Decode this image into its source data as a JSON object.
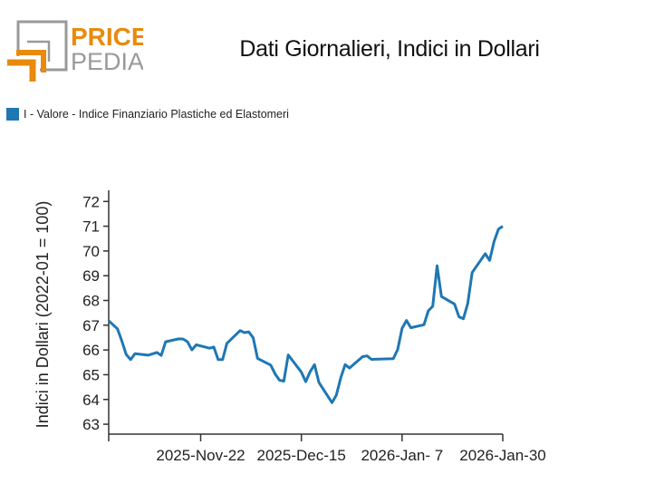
{
  "logo": {
    "text_top": "PRICE",
    "text_bottom": "PEDIA",
    "colors": {
      "orange": "#e98a0c",
      "gray": "#9a9a9a"
    }
  },
  "title": "Dati Giornalieri, Indici in Dollari",
  "legend": [
    {
      "label": "I - Valore - Indice Finanziario Plastiche ed Elastomeri",
      "color": "#1f77b4"
    }
  ],
  "chart_data": {
    "type": "line",
    "title": "Dati Giornalieri, Indici in Dollari",
    "xlabel": "",
    "ylabel": "Indici in Dollari (2022-01 = 100)",
    "xlim": [
      "2025-11-01",
      "2026-01-30"
    ],
    "ylim": [
      62.6,
      72.45
    ],
    "yticks": [
      63,
      64,
      65,
      66,
      67,
      68,
      69,
      70,
      71,
      72
    ],
    "xticks": [
      {
        "date": "2025-11-22",
        "label": "2025-Nov-22"
      },
      {
        "date": "2025-12-15",
        "label": "2025-Dec-15"
      },
      {
        "date": "2026-01-07",
        "label": "2026-Jan- 7"
      },
      {
        "date": "2026-01-30",
        "label": "2026-Jan-30"
      }
    ],
    "grid": false,
    "legend_position": "top-left",
    "series": [
      {
        "name": "I - Valore - Indice Finanziario Plastiche ed Elastomeri",
        "color": "#1f77b4",
        "x": [
          "2025-11-03",
          "2025-11-04",
          "2025-11-05",
          "2025-11-06",
          "2025-11-07",
          "2025-11-10",
          "2025-11-12",
          "2025-11-13",
          "2025-11-14",
          "2025-11-17",
          "2025-11-18",
          "2025-11-19",
          "2025-11-20",
          "2025-11-21",
          "2025-11-24",
          "2025-11-25",
          "2025-11-26",
          "2025-11-27",
          "2025-11-28",
          "2025-12-01",
          "2025-12-02",
          "2025-12-03",
          "2025-12-04",
          "2025-12-05",
          "2025-12-08",
          "2025-12-09",
          "2025-12-10",
          "2025-12-11",
          "2025-12-12",
          "2025-12-15",
          "2025-12-16",
          "2025-12-17",
          "2025-12-18",
          "2025-12-19",
          "2025-12-22",
          "2025-12-23",
          "2025-12-24",
          "2025-12-25",
          "2025-12-26",
          "2025-12-29",
          "2025-12-30",
          "2025-12-31",
          "2026-01-05",
          "2026-01-06",
          "2026-01-07",
          "2026-01-08",
          "2026-01-09",
          "2026-01-12",
          "2026-01-13",
          "2026-01-14",
          "2026-01-15",
          "2026-01-16",
          "2026-01-19",
          "2026-01-20",
          "2026-01-21",
          "2026-01-22",
          "2026-01-23",
          "2026-01-26",
          "2026-01-27",
          "2026-01-28",
          "2026-01-29",
          "2026-01-30"
        ],
        "values": [
          66.85,
          66.36,
          65.82,
          65.61,
          65.85,
          65.79,
          65.9,
          65.78,
          66.33,
          66.45,
          66.44,
          66.33,
          66.0,
          66.21,
          66.07,
          66.12,
          65.61,
          65.61,
          66.27,
          66.78,
          66.7,
          66.73,
          66.49,
          65.66,
          65.39,
          65.03,
          64.78,
          64.74,
          65.8,
          65.1,
          64.72,
          65.12,
          65.41,
          64.69,
          63.87,
          64.18,
          64.88,
          65.41,
          65.27,
          65.73,
          65.76,
          65.62,
          65.65,
          66.02,
          66.87,
          67.19,
          66.9,
          67.02,
          67.58,
          67.77,
          69.4,
          68.16,
          67.85,
          67.34,
          67.26,
          67.87,
          69.13,
          69.89,
          69.62,
          70.37,
          70.88,
          71.0
        ],
        "start": {
          "x": "2025-11-01",
          "value": 67.18
        }
      }
    ]
  }
}
